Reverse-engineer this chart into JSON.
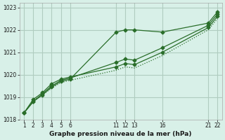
{
  "xlabel": "Graphe pression niveau de la mer (hPa)",
  "bg_color": "#d8f0e8",
  "grid_color": "#b0ccc0",
  "line_color": "#2a6e2a",
  "x_ticks": [
    1,
    2,
    3,
    4,
    5,
    6,
    11,
    12,
    13,
    16,
    21,
    22
  ],
  "ylim": [
    1018.0,
    1023.2
  ],
  "y_ticks": [
    1018,
    1019,
    1020,
    1021,
    1022,
    1023
  ],
  "series": [
    {
      "x": [
        1,
        2,
        3,
        4,
        5,
        6,
        11,
        12,
        13,
        16,
        21,
        22
      ],
      "y": [
        1018.3,
        1018.8,
        1019.1,
        1019.45,
        1019.7,
        1019.8,
        1021.9,
        1022.0,
        1022.0,
        1021.9,
        1022.3,
        1022.8
      ],
      "style": "-",
      "marker": "D",
      "markersize": 2.5
    },
    {
      "x": [
        1,
        2,
        3,
        4,
        5,
        6,
        11,
        12,
        13,
        16,
        21,
        22
      ],
      "y": [
        1018.3,
        1018.8,
        1019.15,
        1019.5,
        1019.75,
        1019.85,
        1020.55,
        1020.7,
        1020.65,
        1021.2,
        1022.2,
        1022.7
      ],
      "style": "-",
      "marker": "D",
      "markersize": 2.5
    },
    {
      "x": [
        1,
        2,
        3,
        4,
        5,
        6,
        11,
        12,
        13,
        16,
        21,
        22
      ],
      "y": [
        1018.3,
        1018.9,
        1019.2,
        1019.6,
        1019.8,
        1019.9,
        1020.35,
        1020.5,
        1020.45,
        1021.0,
        1022.1,
        1022.6
      ],
      "style": "-",
      "marker": "D",
      "markersize": 2.5
    },
    {
      "x": [
        1,
        2,
        3,
        4,
        5,
        6,
        11,
        12,
        13,
        16,
        21,
        22
      ],
      "y": [
        1018.3,
        1018.85,
        1019.1,
        1019.4,
        1019.65,
        1019.75,
        1020.2,
        1020.35,
        1020.3,
        1020.85,
        1022.0,
        1022.5
      ],
      "style": ":",
      "marker": null,
      "markersize": 0
    }
  ]
}
